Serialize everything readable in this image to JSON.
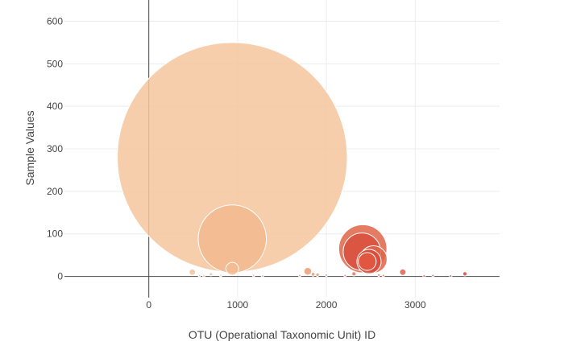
{
  "chart_data": {
    "type": "scatter",
    "subtype": "bubble",
    "xlabel": "OTU (Operational Taxonomic Unit) ID",
    "ylabel": "Sample Values",
    "xlim": [
      -950,
      3950
    ],
    "ylim": [
      -50,
      650
    ],
    "x_ticks": [
      0,
      1000,
      2000,
      3000
    ],
    "y_ticks": [
      0,
      100,
      200,
      300,
      400,
      500,
      600
    ],
    "grid": true,
    "legend": "none",
    "colors": {
      "light": "#f6c59d",
      "dark": "#d84a3a"
    },
    "points": [
      {
        "x": 940,
        "y": 280,
        "size": 540,
        "color": "#f6c59d"
      },
      {
        "x": 940,
        "y": 88,
        "size": 160,
        "color": "#f2b88e"
      },
      {
        "x": 940,
        "y": 18,
        "size": 30,
        "color": "#f4bc93"
      },
      {
        "x": 2410,
        "y": 65,
        "size": 113,
        "color": "#df6548"
      },
      {
        "x": 2400,
        "y": 58,
        "size": 88,
        "color": "#d8503c"
      },
      {
        "x": 2530,
        "y": 40,
        "size": 64,
        "color": "#df6548"
      },
      {
        "x": 2480,
        "y": 35,
        "size": 57,
        "color": "#d84a3a"
      },
      {
        "x": 2460,
        "y": 35,
        "size": 42,
        "color": "#e0583f"
      },
      {
        "x": 490,
        "y": 10,
        "size": 15,
        "color": "#f5c19b"
      },
      {
        "x": 700,
        "y": 5,
        "size": 8,
        "color": "#f5c19b"
      },
      {
        "x": 1790,
        "y": 12,
        "size": 18,
        "color": "#ee9a78"
      },
      {
        "x": 1850,
        "y": 5,
        "size": 9,
        "color": "#ee9a78"
      },
      {
        "x": 1900,
        "y": 4,
        "size": 8,
        "color": "#ec9575"
      },
      {
        "x": 2310,
        "y": 6,
        "size": 10,
        "color": "#e37a60"
      },
      {
        "x": 2860,
        "y": 10,
        "size": 15,
        "color": "#dd6250"
      },
      {
        "x": 3560,
        "y": 6,
        "size": 10,
        "color": "#d04a3c"
      },
      {
        "x": 570,
        "y": 2,
        "size": 4,
        "color": "#f6c8a4"
      },
      {
        "x": 620,
        "y": 1,
        "size": 3,
        "color": "#f6c8a4"
      },
      {
        "x": 810,
        "y": 2,
        "size": 4,
        "color": "#f6c8a4"
      },
      {
        "x": 1180,
        "y": 2,
        "size": 4,
        "color": "#f3b992"
      },
      {
        "x": 1280,
        "y": 1,
        "size": 3,
        "color": "#f3b992"
      },
      {
        "x": 1700,
        "y": 2,
        "size": 4,
        "color": "#ef9f7c"
      },
      {
        "x": 2000,
        "y": 3,
        "size": 5,
        "color": "#ec9575"
      },
      {
        "x": 2210,
        "y": 2,
        "size": 4,
        "color": "#e8876a"
      },
      {
        "x": 2590,
        "y": 3,
        "size": 5,
        "color": "#e06c55"
      },
      {
        "x": 2640,
        "y": 2,
        "size": 4,
        "color": "#e06c55"
      },
      {
        "x": 3100,
        "y": 1,
        "size": 3,
        "color": "#d85a48"
      },
      {
        "x": 3200,
        "y": 2,
        "size": 4,
        "color": "#d65747"
      },
      {
        "x": 3400,
        "y": 1,
        "size": 3,
        "color": "#d35243"
      }
    ]
  }
}
